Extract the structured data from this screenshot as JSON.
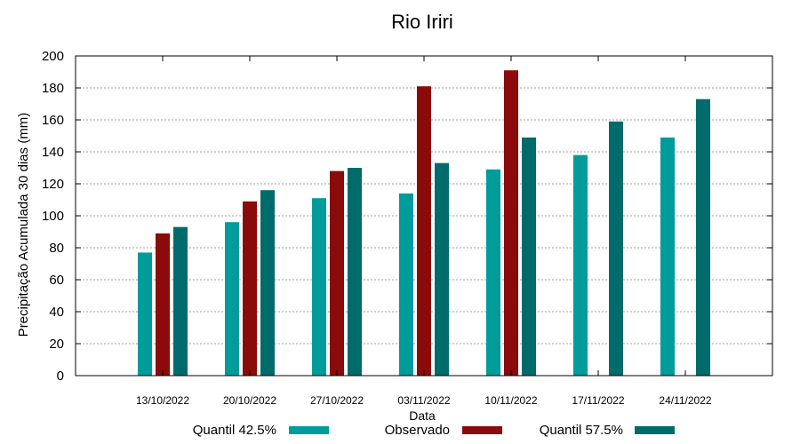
{
  "chart_data": {
    "type": "bar",
    "title": "Rio Iriri",
    "xlabel": "Data",
    "ylabel": "Precipitação Acumulada 30 dias (mm)",
    "ylim": [
      0,
      200
    ],
    "yticks": [
      0,
      20,
      40,
      60,
      80,
      100,
      120,
      140,
      160,
      180,
      200
    ],
    "grid": true,
    "legend_position": "bottom",
    "categories": [
      "13/10/2022",
      "20/10/2022",
      "27/10/2022",
      "03/11/2022",
      "10/11/2022",
      "17/11/2022",
      "24/11/2022"
    ],
    "series": [
      {
        "name": "Quantil 42.5%",
        "color": "#009b9b",
        "values": [
          77,
          96,
          111,
          114,
          129,
          138,
          149
        ]
      },
      {
        "name": "Observado",
        "color": "#8b0a0a",
        "values": [
          89,
          109,
          128,
          181,
          191,
          null,
          null
        ]
      },
      {
        "name": "Quantil 57.5%",
        "color": "#006b6b",
        "values": [
          93,
          116,
          130,
          133,
          149,
          159,
          173
        ]
      }
    ]
  }
}
